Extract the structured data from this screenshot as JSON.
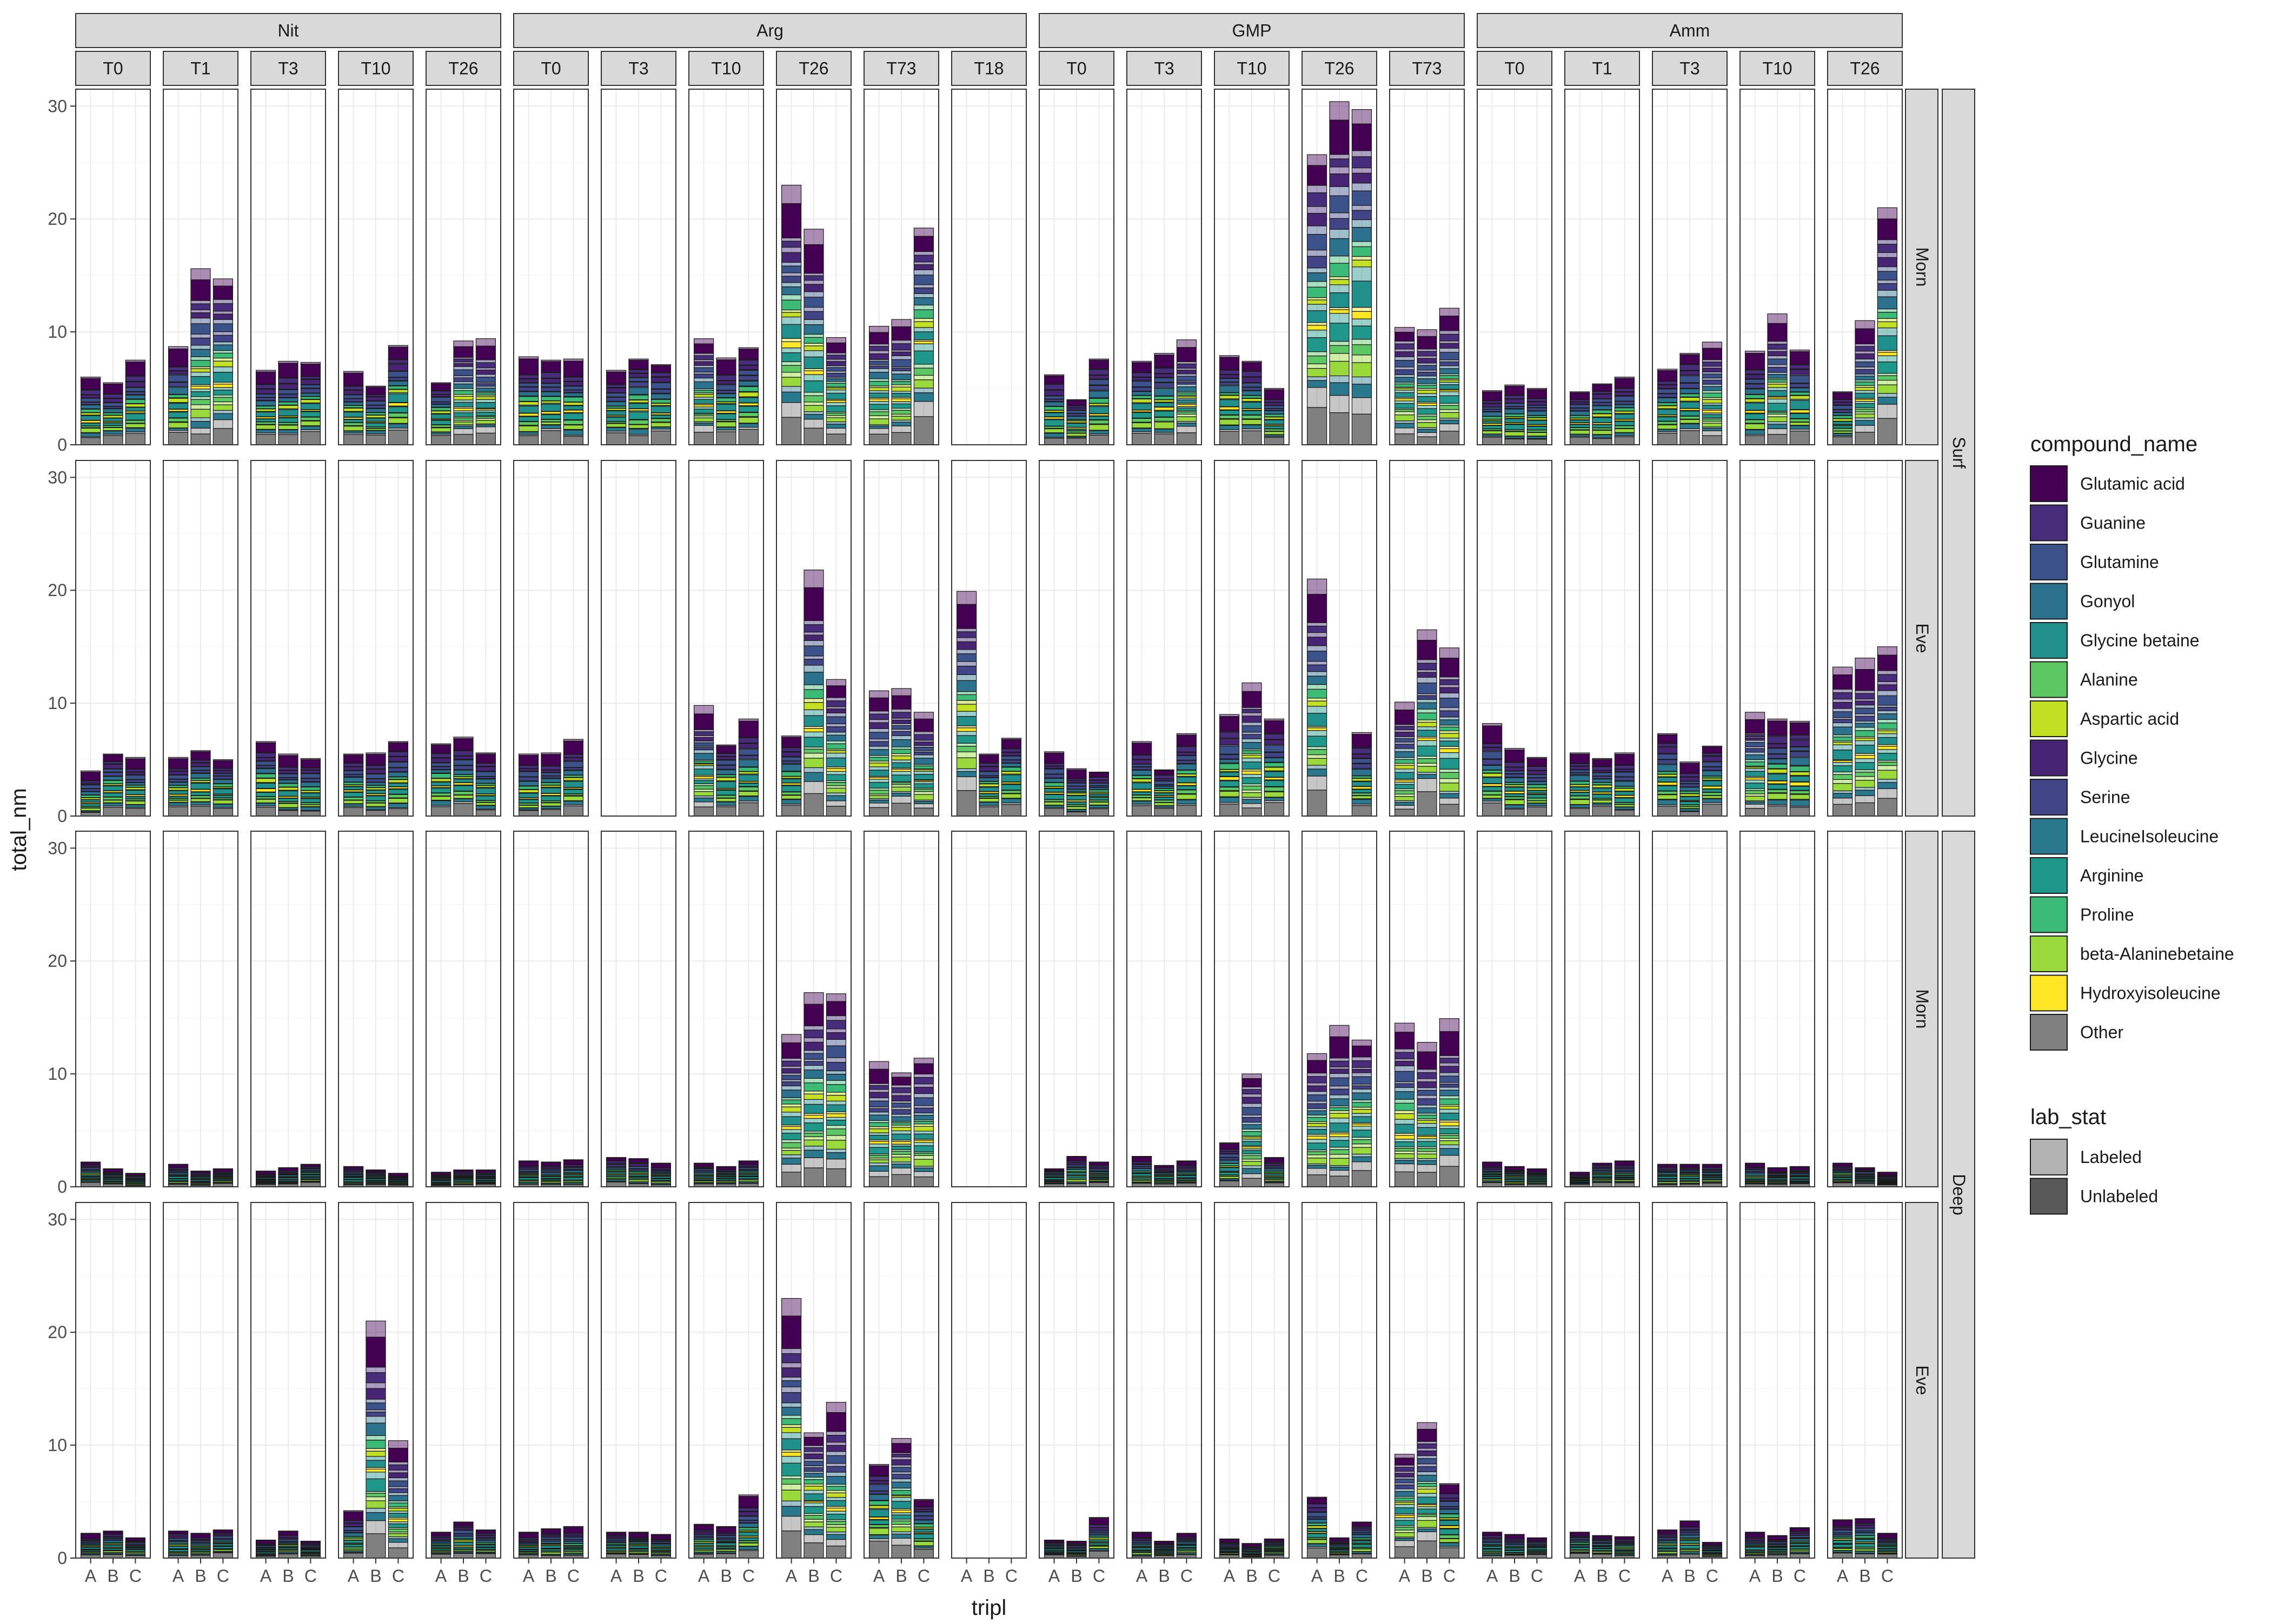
{
  "chart_data": {
    "type": "bar",
    "stacked": true,
    "ylabel": "total_nm",
    "xlabel": "tripl",
    "ylim": [
      0,
      31.5
    ],
    "yticks": [
      0,
      10,
      20,
      30
    ],
    "grid": true,
    "x": [
      "A",
      "B",
      "C"
    ],
    "col_groups": [
      {
        "name": "Nit",
        "timepoints": [
          "T0",
          "T1",
          "T3",
          "T10",
          "T26"
        ]
      },
      {
        "name": "Arg",
        "timepoints": [
          "T0",
          "T3",
          "T10",
          "T26",
          "T73",
          "T18"
        ]
      },
      {
        "name": "GMP",
        "timepoints": [
          "T0",
          "T3",
          "T10",
          "T26",
          "T73"
        ]
      },
      {
        "name": "Amm",
        "timepoints": [
          "T0",
          "T1",
          "T3",
          "T10",
          "T26"
        ]
      }
    ],
    "row_groups": [
      {
        "name": "Surf",
        "rows": [
          "Morn",
          "Eve"
        ]
      },
      {
        "name": "Deep",
        "rows": [
          "Morn",
          "Eve"
        ]
      }
    ],
    "legend_compound": {
      "title": "compound_name",
      "position": "right",
      "items": [
        {
          "name": "Glutamic acid",
          "color": "#440154"
        },
        {
          "name": "Guanine",
          "color": "#472D7B"
        },
        {
          "name": "Glutamine",
          "color": "#3B528B"
        },
        {
          "name": "Gonyol",
          "color": "#2C728E"
        },
        {
          "name": "Glycine betaine",
          "color": "#21908C"
        },
        {
          "name": "Alanine",
          "color": "#5DC863"
        },
        {
          "name": "Aspartic acid",
          "color": "#C2DF23"
        },
        {
          "name": "Glycine",
          "color": "#482475"
        },
        {
          "name": "Serine",
          "color": "#414487"
        },
        {
          "name": "LeucineIsoleucine",
          "color": "#2A788E"
        },
        {
          "name": "Arginine",
          "color": "#1F988B"
        },
        {
          "name": "Proline",
          "color": "#3BBB75"
        },
        {
          "name": "beta-Alaninebetaine",
          "color": "#9AD93C"
        },
        {
          "name": "Hydroxyisoleucine",
          "color": "#FDE725"
        },
        {
          "name": "Other",
          "color": "#808080"
        }
      ]
    },
    "legend_lab": {
      "title": "lab_stat",
      "items": [
        {
          "name": "Labeled",
          "color": "#B3B3B3"
        },
        {
          "name": "Unlabeled",
          "color": "#595959"
        }
      ]
    },
    "totals": {
      "Nit": {
        "T0": [
          [
            6.0,
            5.5,
            7.5
          ],
          [
            4.0,
            5.5,
            5.2
          ],
          [
            2.2,
            1.6,
            1.2
          ],
          [
            2.2,
            2.4,
            1.8
          ]
        ],
        "T1": [
          [
            8.7,
            15.6,
            14.7
          ],
          [
            5.2,
            5.8,
            5.0
          ],
          [
            2.0,
            1.4,
            1.6
          ],
          [
            2.4,
            2.2,
            2.5
          ]
        ],
        "T3": [
          [
            6.6,
            7.4,
            7.3
          ],
          [
            6.6,
            5.5,
            5.1
          ],
          [
            1.4,
            1.7,
            2.0
          ],
          [
            1.6,
            2.4,
            1.5
          ]
        ],
        "T10": [
          [
            6.5,
            5.2,
            8.8
          ],
          [
            5.5,
            5.6,
            6.6
          ],
          [
            1.8,
            1.5,
            1.2
          ],
          [
            4.2,
            21.0,
            10.4
          ]
        ],
        "T26": [
          [
            5.5,
            9.2,
            9.4
          ],
          [
            6.4,
            7.0,
            5.6
          ],
          [
            1.3,
            1.5,
            1.5
          ],
          [
            2.3,
            3.2,
            2.5
          ]
        ]
      },
      "Arg": {
        "T0": [
          [
            7.8,
            7.5,
            7.6
          ],
          [
            5.5,
            5.6,
            6.8
          ],
          [
            2.3,
            2.2,
            2.4
          ],
          [
            2.3,
            2.6,
            2.8
          ]
        ],
        "T3": [
          [
            6.6,
            7.6,
            7.1
          ],
          [
            0,
            0,
            0
          ],
          [
            2.6,
            2.5,
            2.1
          ],
          [
            2.3,
            2.3,
            2.1
          ]
        ],
        "T10": [
          [
            9.4,
            7.7,
            8.6
          ],
          [
            9.8,
            6.3,
            8.6
          ],
          [
            2.1,
            1.8,
            2.3
          ],
          [
            3.0,
            2.8,
            5.6
          ]
        ],
        "T26": [
          [
            23.0,
            19.1,
            9.5
          ],
          [
            7.1,
            21.8,
            12.1
          ],
          [
            13.5,
            17.2,
            17.1
          ],
          [
            23.0,
            11.1,
            13.8
          ]
        ],
        "T73": [
          [
            10.5,
            11.1,
            19.2
          ],
          [
            11.1,
            11.3,
            9.2
          ],
          [
            11.1,
            10.1,
            11.4
          ],
          [
            8.3,
            10.6,
            5.2
          ]
        ],
        "T18": [
          [
            0,
            0,
            0
          ],
          [
            19.9,
            5.5,
            6.9
          ],
          [
            0,
            0,
            0
          ],
          [
            0,
            0,
            0
          ]
        ]
      },
      "GMP": {
        "T0": [
          [
            6.2,
            4.0,
            7.6
          ],
          [
            5.7,
            4.2,
            3.9
          ],
          [
            1.6,
            2.7,
            2.2
          ],
          [
            1.6,
            1.5,
            3.6
          ]
        ],
        "T3": [
          [
            7.4,
            8.1,
            9.3
          ],
          [
            6.6,
            4.1,
            7.3
          ],
          [
            2.7,
            1.9,
            2.3
          ],
          [
            2.3,
            1.5,
            2.2
          ]
        ],
        "T10": [
          [
            7.9,
            7.4,
            5.0
          ],
          [
            9.0,
            11.8,
            8.6
          ],
          [
            3.9,
            10.0,
            2.6
          ],
          [
            1.7,
            1.3,
            1.7
          ]
        ],
        "T26": [
          [
            25.7,
            30.4,
            29.7
          ],
          [
            21.0,
            0,
            7.4
          ],
          [
            11.8,
            14.3,
            13.0
          ],
          [
            5.4,
            1.8,
            3.2
          ]
        ],
        "T73": [
          [
            10.4,
            10.2,
            12.1
          ],
          [
            10.1,
            16.5,
            14.9
          ],
          [
            14.5,
            12.8,
            14.9
          ],
          [
            9.2,
            12.0,
            6.6
          ]
        ]
      },
      "Amm": {
        "T0": [
          [
            4.8,
            5.3,
            5.0
          ],
          [
            8.2,
            6.0,
            5.2
          ],
          [
            2.2,
            1.8,
            1.6
          ],
          [
            2.3,
            2.1,
            1.8
          ]
        ],
        "T1": [
          [
            4.7,
            5.4,
            6.0
          ],
          [
            5.6,
            5.1,
            5.6
          ],
          [
            1.3,
            2.1,
            2.3
          ],
          [
            2.3,
            2.0,
            1.9
          ]
        ],
        "T3": [
          [
            6.7,
            8.1,
            9.1
          ],
          [
            7.3,
            4.8,
            6.2
          ],
          [
            2.0,
            2.0,
            2.0
          ],
          [
            2.5,
            3.3,
            1.4
          ]
        ],
        "T10": [
          [
            8.3,
            11.6,
            8.4
          ],
          [
            9.2,
            8.6,
            8.4
          ],
          [
            2.1,
            1.7,
            1.8
          ],
          [
            2.3,
            2.0,
            2.7
          ]
        ],
        "T26": [
          [
            4.7,
            11.0,
            21.0
          ],
          [
            13.2,
            14.0,
            15.0
          ],
          [
            2.1,
            1.7,
            1.3
          ],
          [
            3.4,
            3.5,
            2.2
          ]
        ]
      }
    }
  }
}
